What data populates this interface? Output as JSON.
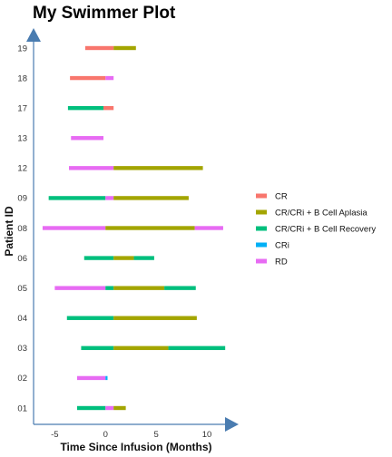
{
  "chart_data": {
    "type": "swimmer",
    "title": "My Swimmer Plot",
    "xlabel": "Time Since Infusion (Months)",
    "ylabel": "Patient ID",
    "xlim": [
      -7,
      12.5
    ],
    "xticks": [
      -5,
      0,
      5,
      10
    ],
    "categories": [
      "01",
      "02",
      "03",
      "04",
      "05",
      "06",
      "08",
      "09",
      "12",
      "13",
      "17",
      "18",
      "19"
    ],
    "legend": {
      "position": "right",
      "entries": [
        "CR",
        "CR/CRi + B Cell Aplasia",
        "CR/CRi + B Cell Recovery",
        "CRi",
        "RD"
      ]
    },
    "series_colors": {
      "CR": "#F8766D",
      "CR/CRi + B Cell Aplasia": "#A3A500",
      "CR/CRi + B Cell Recovery": "#00BF7D",
      "CRi": "#00B0F6",
      "RD": "#E76BF3"
    },
    "axis_color": "#4A7CB0",
    "segments": [
      {
        "patient": "01",
        "start": -2.8,
        "end": 0.0,
        "status": "CR/CRi + B Cell Recovery"
      },
      {
        "patient": "01",
        "start": 0.0,
        "end": 0.8,
        "status": "RD"
      },
      {
        "patient": "01",
        "start": 0.8,
        "end": 2.0,
        "status": "CR/CRi + B Cell Aplasia"
      },
      {
        "patient": "02",
        "start": -2.8,
        "end": 0.0,
        "status": "RD"
      },
      {
        "patient": "02",
        "start": 0.0,
        "end": 0.2,
        "status": "CRi"
      },
      {
        "patient": "03",
        "start": -2.4,
        "end": 0.8,
        "status": "CR/CRi + B Cell Recovery"
      },
      {
        "patient": "03",
        "start": 0.8,
        "end": 6.2,
        "status": "CR/CRi + B Cell Aplasia"
      },
      {
        "patient": "03",
        "start": 6.2,
        "end": 11.8,
        "status": "CR/CRi + B Cell Recovery"
      },
      {
        "patient": "04",
        "start": -3.8,
        "end": 0.8,
        "status": "CR/CRi + B Cell Recovery"
      },
      {
        "patient": "04",
        "start": 0.8,
        "end": 9.0,
        "status": "CR/CRi + B Cell Aplasia"
      },
      {
        "patient": "05",
        "start": -5.0,
        "end": 0.0,
        "status": "RD"
      },
      {
        "patient": "05",
        "start": 0.0,
        "end": 0.8,
        "status": "CR/CRi + B Cell Recovery"
      },
      {
        "patient": "05",
        "start": 0.8,
        "end": 5.8,
        "status": "CR/CRi + B Cell Aplasia"
      },
      {
        "patient": "05",
        "start": 5.8,
        "end": 8.9,
        "status": "CR/CRi + B Cell Recovery"
      },
      {
        "patient": "06",
        "start": -2.1,
        "end": 0.8,
        "status": "CR/CRi + B Cell Recovery"
      },
      {
        "patient": "06",
        "start": 0.8,
        "end": 2.8,
        "status": "CR/CRi + B Cell Aplasia"
      },
      {
        "patient": "06",
        "start": 2.8,
        "end": 4.8,
        "status": "CR/CRi + B Cell Recovery"
      },
      {
        "patient": "08",
        "start": -6.2,
        "end": 0.0,
        "status": "RD"
      },
      {
        "patient": "08",
        "start": 0.0,
        "end": 8.8,
        "status": "CR/CRi + B Cell Aplasia"
      },
      {
        "patient": "08",
        "start": 8.8,
        "end": 11.6,
        "status": "RD"
      },
      {
        "patient": "09",
        "start": -5.6,
        "end": 0.0,
        "status": "CR/CRi + B Cell Recovery"
      },
      {
        "patient": "09",
        "start": 0.0,
        "end": 0.8,
        "status": "RD"
      },
      {
        "patient": "09",
        "start": 0.8,
        "end": 8.2,
        "status": "CR/CRi + B Cell Aplasia"
      },
      {
        "patient": "12",
        "start": -3.6,
        "end": 0.8,
        "status": "RD"
      },
      {
        "patient": "12",
        "start": 0.8,
        "end": 9.6,
        "status": "CR/CRi + B Cell Aplasia"
      },
      {
        "patient": "13",
        "start": -3.4,
        "end": -0.2,
        "status": "RD"
      },
      {
        "patient": "17",
        "start": -3.7,
        "end": -0.2,
        "status": "CR/CRi + B Cell Recovery"
      },
      {
        "patient": "17",
        "start": -0.2,
        "end": 0.8,
        "status": "CR"
      },
      {
        "patient": "18",
        "start": -3.5,
        "end": 0.0,
        "status": "CR"
      },
      {
        "patient": "18",
        "start": 0.0,
        "end": 0.8,
        "status": "RD"
      },
      {
        "patient": "19",
        "start": -2.0,
        "end": 0.8,
        "status": "CR"
      },
      {
        "patient": "19",
        "start": 0.8,
        "end": 3.0,
        "status": "CR/CRi + B Cell Aplasia"
      }
    ]
  }
}
